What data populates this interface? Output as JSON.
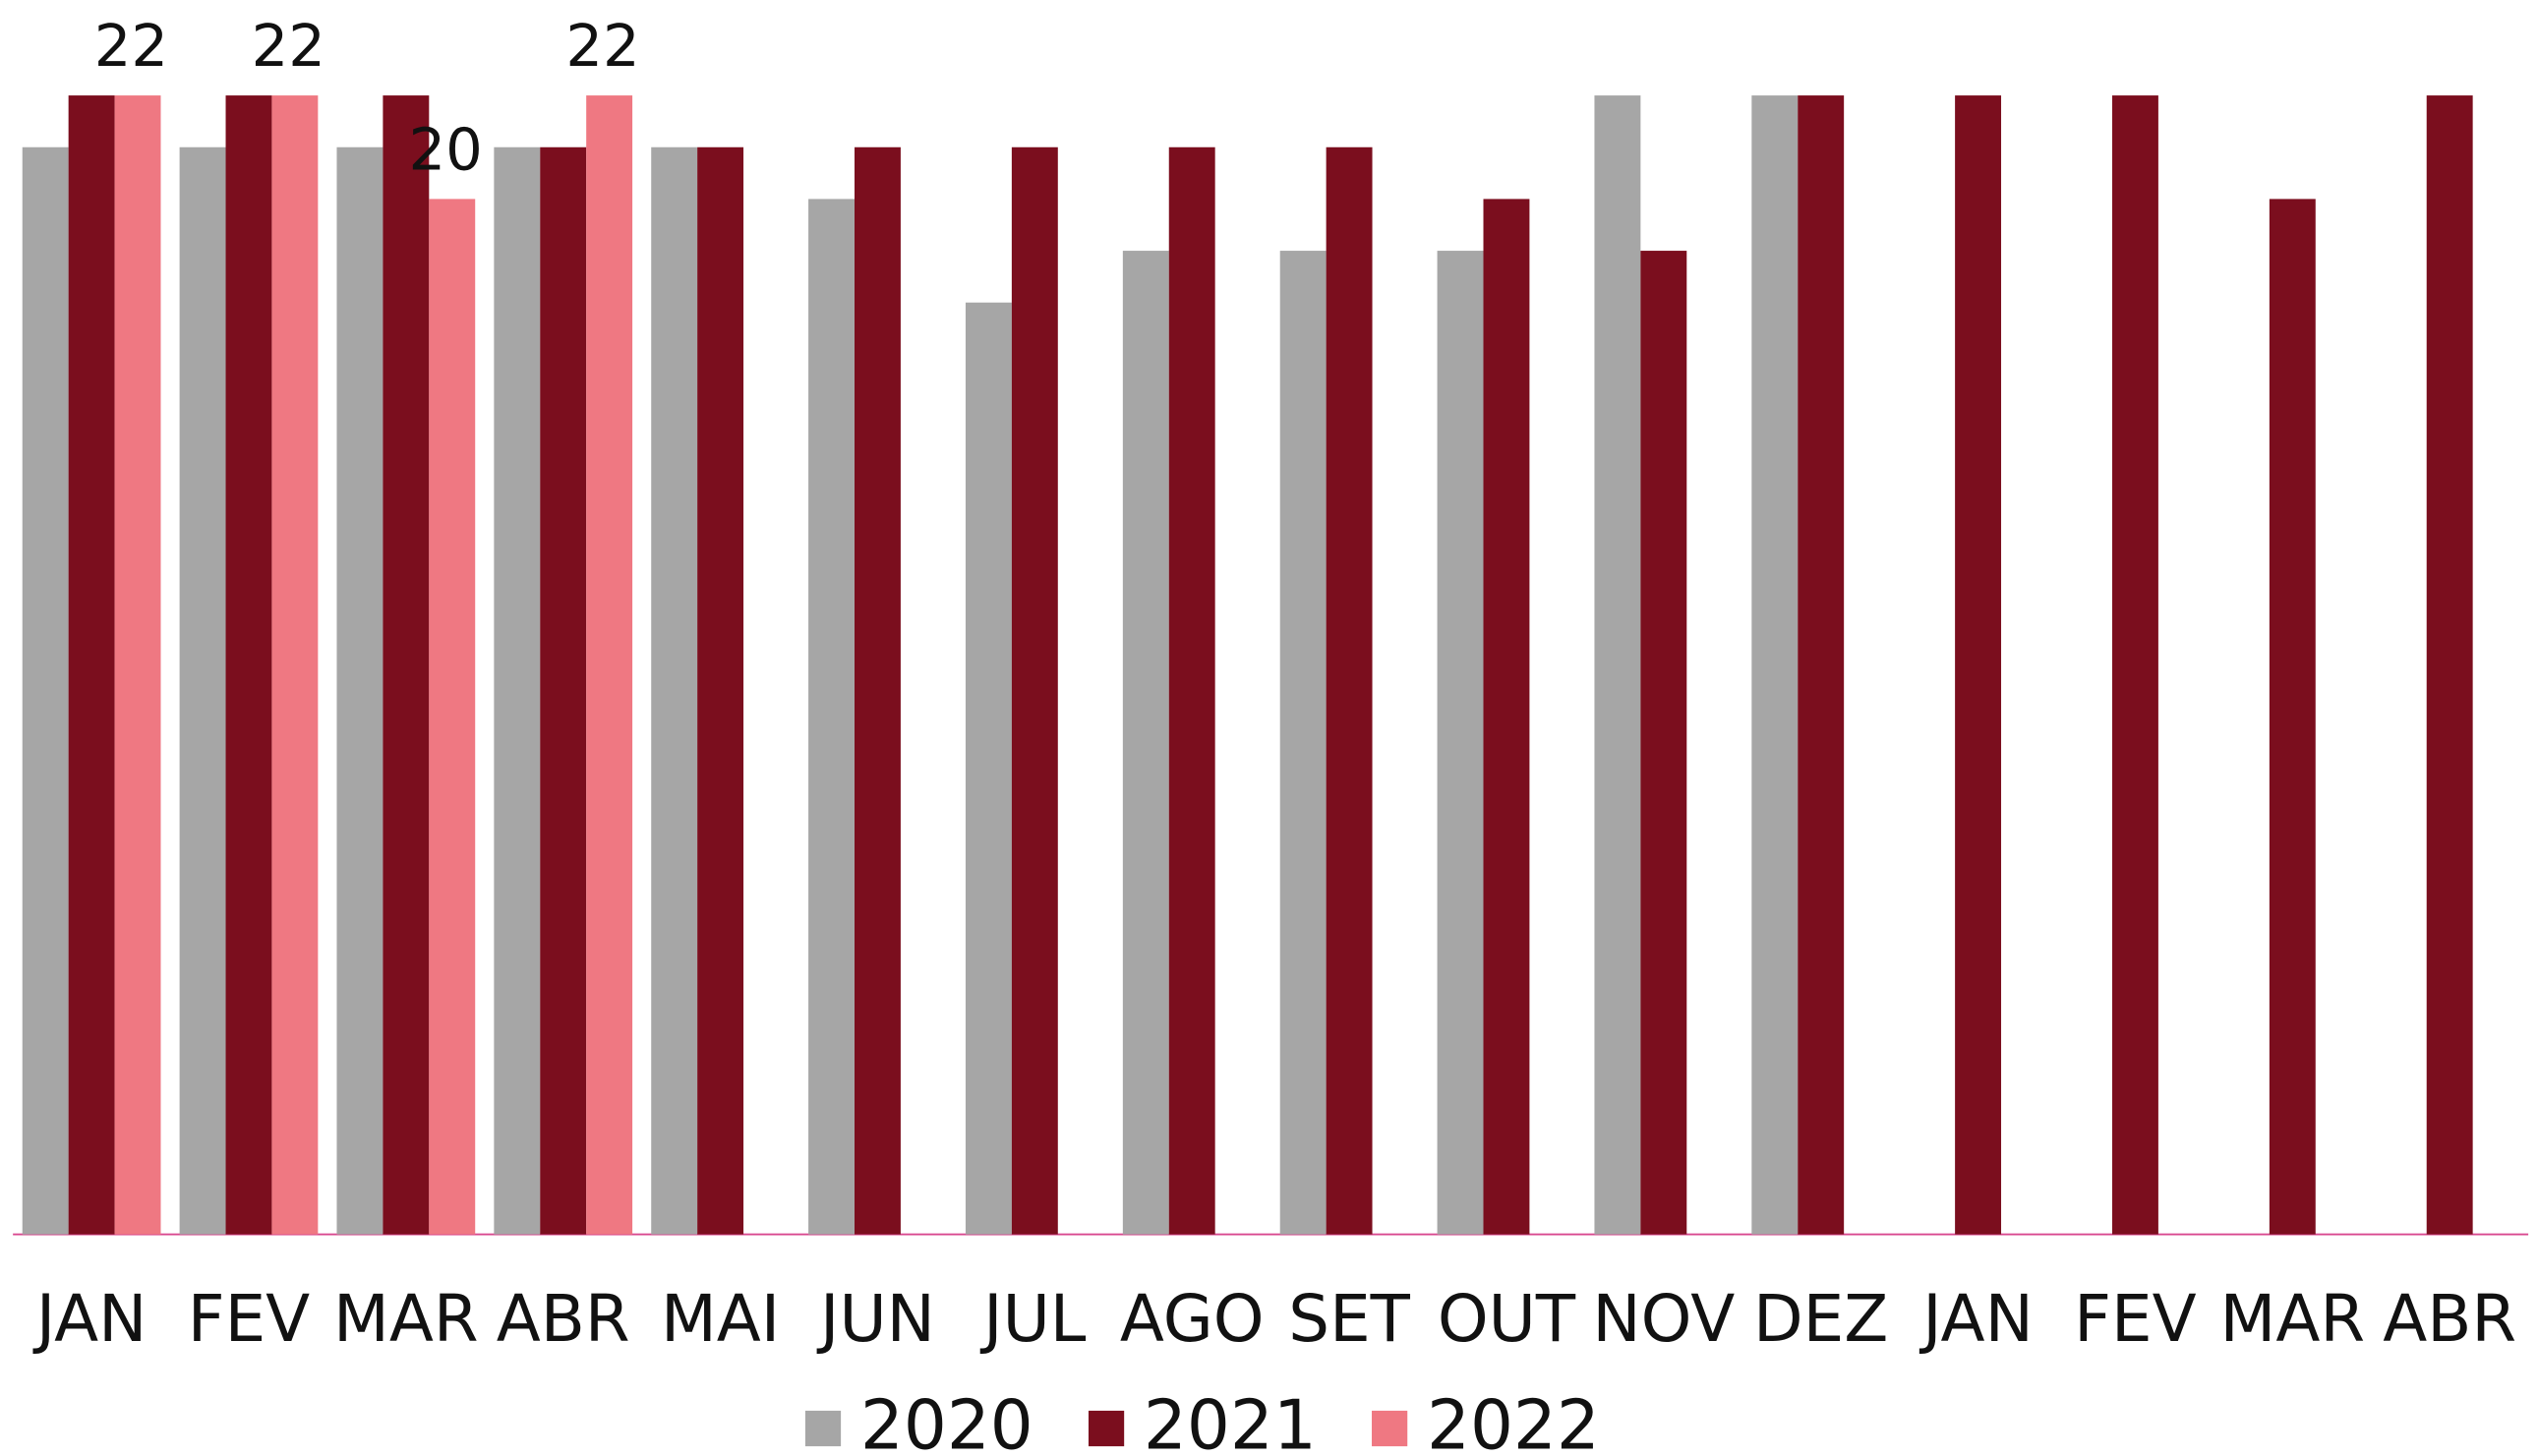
{
  "chart_data": {
    "type": "bar",
    "categories": [
      "JAN",
      "FEV",
      "MAR",
      "ABR",
      "MAI",
      "JUN",
      "JUL",
      "AGO",
      "SET",
      "OUT",
      "NOV",
      "DEZ",
      "JAN",
      "FEV",
      "MAR",
      "ABR"
    ],
    "series": [
      {
        "name": "2020",
        "color": "#a6a6a6",
        "values": [
          21,
          21,
          21,
          21,
          21,
          20,
          18,
          19,
          19,
          19,
          22,
          22,
          null,
          null,
          null,
          null
        ]
      },
      {
        "name": "2021",
        "color": "#7b0e1e",
        "values": [
          22,
          22,
          22,
          21,
          21,
          21,
          21,
          21,
          21,
          20,
          19,
          22,
          22,
          22,
          20,
          22
        ]
      },
      {
        "name": "2022",
        "color": "#ef7882",
        "values": [
          22,
          22,
          20,
          22,
          null,
          null,
          null,
          null,
          null,
          null,
          null,
          null,
          null,
          null,
          null,
          null
        ],
        "show_values": true
      }
    ],
    "ylim": [
      0,
      22
    ],
    "legend": "bottom"
  }
}
